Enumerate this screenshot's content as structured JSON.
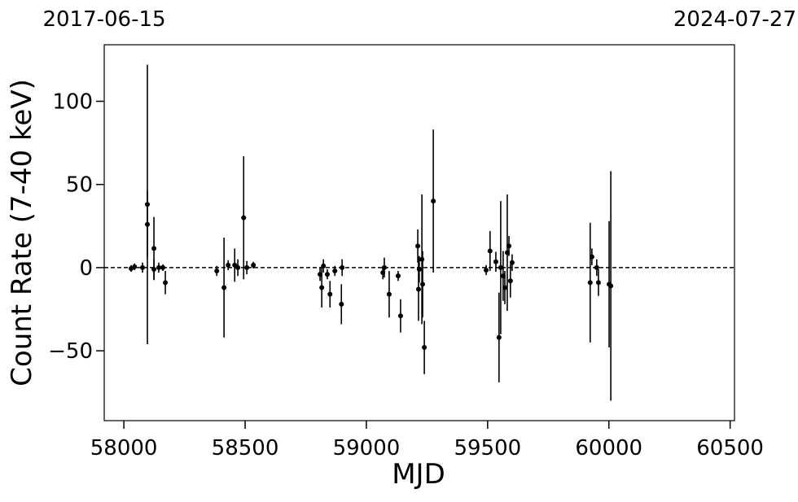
{
  "chart_data": {
    "type": "errorbar",
    "xlabel": "MJD",
    "ylabel": "Count Rate (7-40 keV)",
    "xlim": [
      57919,
      60518
    ],
    "ylim": [
      -92,
      134
    ],
    "xticks": [
      58000,
      58500,
      59000,
      59500,
      60000,
      60500
    ],
    "yticks": [
      {
        "value": -50,
        "label": "−50"
      },
      0,
      50,
      100
    ],
    "x2ticks": [
      {
        "value": 57919,
        "label": "2017-06-15"
      },
      {
        "value": 60518,
        "label": "2024-07-27"
      }
    ],
    "hline": 0,
    "series": [
      {
        "color": "#000000",
        "x": [
          58030,
          58044,
          58077,
          58097,
          58097,
          58124,
          58124,
          58144,
          58161,
          58171,
          58383,
          58413,
          58430,
          58457,
          58470,
          58494,
          58507,
          58534,
          58809,
          58816,
          58823,
          58839,
          58850,
          58870,
          58897,
          58900,
          59068,
          59074,
          59094,
          59131,
          59141,
          59212,
          59215,
          59218,
          59229,
          59232,
          59239,
          59276,
          59494,
          59510,
          59534,
          59547,
          59554,
          59564,
          59571,
          59581,
          59588,
          59594,
          59601,
          59923,
          59930,
          59950,
          59957,
          60001,
          60008
        ],
        "y": [
          -0.5,
          0.5,
          0,
          38,
          26,
          11.5,
          -1,
          0,
          0,
          -9,
          -2,
          -12,
          1.5,
          1.5,
          0,
          30,
          0,
          1.5,
          -4,
          -12,
          1,
          -4,
          -16,
          -2,
          -22,
          0,
          -3,
          0,
          -16,
          -5,
          -29,
          13,
          -13,
          -1,
          5,
          -10,
          -48,
          40,
          -1.5,
          10,
          3.5,
          -42,
          0,
          -5,
          -12,
          9,
          13,
          -8,
          3,
          -9,
          6.5,
          0,
          -9,
          -10,
          -11
        ],
        "yerr": [
          2,
          2,
          3,
          84,
          20,
          19,
          6,
          3,
          2,
          7,
          3,
          30,
          3,
          10,
          5,
          37,
          4,
          2,
          4,
          12,
          4,
          3,
          8,
          3,
          12,
          5,
          4,
          6,
          14,
          3,
          10,
          10,
          19,
          8,
          39,
          20,
          16,
          43,
          3,
          12,
          6,
          27,
          40,
          15,
          10,
          35,
          6,
          10,
          5,
          36,
          5,
          5,
          8,
          38,
          69
        ]
      }
    ]
  }
}
